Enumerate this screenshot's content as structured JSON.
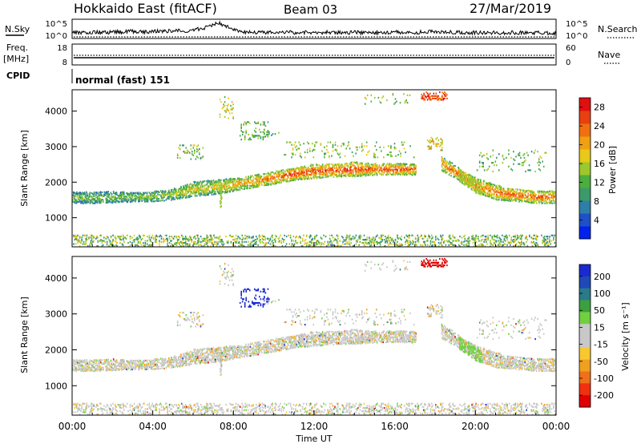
{
  "header": {
    "station": "Hokkaido East (fitACF)",
    "beam": "Beam 03",
    "date": "27/Mar/2019"
  },
  "noise_panel": {
    "left_label": "N.Sky",
    "right_label": "N.Search",
    "left_ticks": [
      "10^5",
      "10^0"
    ],
    "right_ticks": [
      "10^5",
      "10^0"
    ],
    "nsky_profile": [
      [
        0,
        0.35
      ],
      [
        0.5,
        0.4
      ],
      [
        1,
        0.42
      ],
      [
        1.5,
        0.38
      ],
      [
        2,
        0.45
      ],
      [
        2.5,
        0.42
      ],
      [
        3,
        0.48
      ],
      [
        3.5,
        0.45
      ],
      [
        4,
        0.5
      ],
      [
        4.5,
        0.48
      ],
      [
        5,
        0.55
      ],
      [
        5.5,
        0.52
      ],
      [
        6,
        0.6
      ],
      [
        6.5,
        0.75
      ],
      [
        6.8,
        0.9
      ],
      [
        7.0,
        1.1
      ],
      [
        7.2,
        1.25
      ],
      [
        7.4,
        1.15
      ],
      [
        7.6,
        0.95
      ],
      [
        7.8,
        0.8
      ],
      [
        8,
        0.6
      ],
      [
        8.5,
        0.45
      ],
      [
        9,
        0.4
      ],
      [
        10,
        0.42
      ],
      [
        11,
        0.4
      ],
      [
        12,
        0.38
      ],
      [
        13,
        0.4
      ],
      [
        14,
        0.38
      ],
      [
        15,
        0.4
      ],
      [
        16,
        0.42
      ],
      [
        17,
        0.4
      ],
      [
        18,
        0.45
      ],
      [
        19,
        0.42
      ],
      [
        20,
        0.38
      ],
      [
        21,
        0.35
      ],
      [
        22,
        0.38
      ],
      [
        23,
        0.36
      ],
      [
        24,
        0.35
      ]
    ]
  },
  "freq_panel": {
    "left_label_1": "Freq.",
    "left_label_2": "[MHz]",
    "right_label": "Nave",
    "left_ticks": [
      "18",
      "8"
    ],
    "right_ticks": [
      "60",
      "0"
    ]
  },
  "cpid_panel": {
    "label": "CPID",
    "mode": "normal (fast) 151"
  },
  "colors": {
    "power": [
      "#0022ee",
      "#1e50c8",
      "#2e7fa8",
      "#3c9a6a",
      "#4cae3c",
      "#9cc82c",
      "#e8c818",
      "#f0a010",
      "#f07010",
      "#e84010",
      "#e01010"
    ],
    "velocity": [
      "#e00000",
      "#f03010",
      "#f07018",
      "#f0a020",
      "#f8c830",
      "#c8c8c8",
      "#c8c8c8",
      "#70d040",
      "#3ca040",
      "#2a7a8a",
      "#1e4ab8",
      "#1a2ad0"
    ]
  },
  "chart_data": [
    {
      "type": "heatmap",
      "name": "power",
      "xlabel": "",
      "ylabel": "Slant Range [km]",
      "xlim": [
        0,
        24
      ],
      "ylim": [
        180,
        4600
      ],
      "yticks": [
        1000,
        2000,
        3000,
        4000
      ],
      "colorbar": {
        "label": "Power [dB]",
        "ticks": [
          "4",
          "8",
          "12",
          "16",
          "20",
          "24",
          "28"
        ],
        "range": [
          0,
          30
        ]
      },
      "main_echo_band": [
        [
          0,
          1400,
          1700,
          12
        ],
        [
          1,
          1400,
          1700,
          12
        ],
        [
          2,
          1420,
          1720,
          12
        ],
        [
          3,
          1450,
          1700,
          13
        ],
        [
          4,
          1450,
          1720,
          13
        ],
        [
          5,
          1500,
          1800,
          14
        ],
        [
          6,
          1600,
          2000,
          16
        ],
        [
          7,
          1650,
          2050,
          17
        ],
        [
          8,
          1750,
          2100,
          18
        ],
        [
          9,
          1850,
          2200,
          19
        ],
        [
          10,
          1950,
          2300,
          22
        ],
        [
          11,
          2050,
          2400,
          24
        ],
        [
          12,
          2100,
          2500,
          24
        ],
        [
          13,
          2150,
          2500,
          24
        ],
        [
          14,
          2150,
          2550,
          24
        ],
        [
          15,
          2200,
          2500,
          24
        ],
        [
          16,
          2200,
          2500,
          24
        ],
        [
          17,
          2200,
          2500,
          22
        ]
      ],
      "descending_echo_band": [
        [
          18.3,
          2300,
          2700,
          20
        ],
        [
          19,
          2100,
          2450,
          22
        ],
        [
          19.5,
          1900,
          2250,
          22
        ],
        [
          20,
          1700,
          2100,
          22
        ],
        [
          21,
          1500,
          1900,
          22
        ],
        [
          22,
          1450,
          1800,
          22
        ],
        [
          23,
          1400,
          1750,
          22
        ],
        [
          24,
          1400,
          1750,
          22
        ]
      ]
    },
    {
      "type": "heatmap",
      "name": "velocity",
      "xlabel": "Time UT",
      "ylabel": "Slant Range [km]",
      "xlim": [
        0,
        24
      ],
      "ylim": [
        180,
        4600
      ],
      "xticks": [
        "00:00",
        "04:00",
        "08:00",
        "12:00",
        "16:00",
        "20:00",
        "00:00"
      ],
      "yticks": [
        1000,
        2000,
        3000,
        4000
      ],
      "colorbar": {
        "label": "Velocity [m s⁻¹]",
        "ticks": [
          "200",
          "100",
          "50",
          "15",
          "-15",
          "-50",
          "-100",
          "-200"
        ]
      }
    }
  ]
}
